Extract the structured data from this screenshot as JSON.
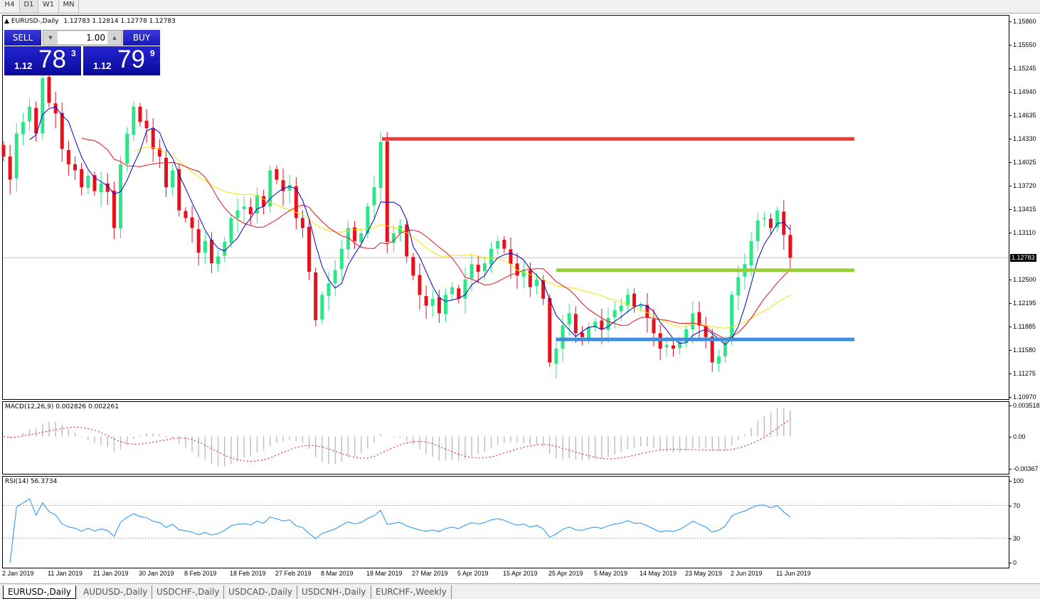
{
  "toolbar": {
    "timeframes": [
      "H4",
      "D1",
      "W1",
      "MN"
    ],
    "active": "D1"
  },
  "chart": {
    "title": "EURUSD-,Daily",
    "ohlc": "1.12783 1.12814 1.12778 1.12783",
    "current_price": "1.12783",
    "price_axis": [
      "1.15860",
      "1.15550",
      "1.15245",
      "1.14940",
      "1.14635",
      "1.14330",
      "1.14025",
      "1.13720",
      "1.13415",
      "1.13110",
      "1.12500",
      "1.12195",
      "1.11885",
      "1.11580",
      "1.11275",
      "1.10970"
    ],
    "date_axis": [
      "2 Jan 2019",
      "11 Jan 2019",
      "21 Jan 2019",
      "30 Jan 2019",
      "8 Feb 2019",
      "18 Feb 2019",
      "27 Feb 2019",
      "8 Mar 2019",
      "18 Mar 2019",
      "27 Mar 2019",
      "5 Apr 2019",
      "15 Apr 2019",
      "25 Apr 2019",
      "5 May 2019",
      "14 May 2019",
      "23 May 2019",
      "2 Jun 2019",
      "11 Jun 2019"
    ],
    "colors": {
      "bull": "#2ee68a",
      "bear": "#e8101a",
      "ma_fast": "#0000cc",
      "ma_mid": "#e8101a",
      "ma_slow": "#f5e600",
      "grid_line": "#c0c0c0"
    }
  },
  "trade_panel": {
    "sell_label": "SELL",
    "buy_label": "BUY",
    "lot": "1.00",
    "sell": {
      "prefix": "1.12",
      "big": "78",
      "sup": "3"
    },
    "buy": {
      "prefix": "1.12",
      "big": "79",
      "sup": "9"
    }
  },
  "macd": {
    "title": "MACD(12,26,9) 0.002826 0.002261",
    "axis": [
      "0.003518",
      "0.00",
      "-0.00367"
    ]
  },
  "rsi": {
    "title": "RSI(14) 56.3734",
    "axis": [
      "100",
      "70",
      "30",
      "0"
    ]
  },
  "tabs": [
    "EURUSD-,Daily",
    "AUDUSD-,Daily",
    "USDCHF-,Daily",
    "USDCAD-,Daily",
    "USDCNH-,Daily",
    "EURCHF-,Weekly"
  ],
  "chart_data": {
    "type": "candlestick",
    "ylim": [
      1.1097,
      1.1586
    ],
    "closes": [
      1.141,
      1.138,
      1.144,
      1.1455,
      1.1475,
      1.144,
      1.1512,
      1.148,
      1.1466,
      1.142,
      1.14,
      1.1392,
      1.137,
      1.1385,
      1.1365,
      1.1375,
      1.1364,
      1.1317,
      1.14,
      1.144,
      1.1475,
      1.1455,
      1.1447,
      1.142,
      1.141,
      1.137,
      1.1392,
      1.134,
      1.133,
      1.1317,
      1.1285,
      1.13,
      1.1271,
      1.128,
      1.1299,
      1.133,
      1.134,
      1.1345,
      1.1335,
      1.136,
      1.1345,
      1.1392,
      1.138,
      1.1365,
      1.1373,
      1.133,
      1.1317,
      1.126,
      1.1197,
      1.123,
      1.1245,
      1.1262,
      1.129,
      1.1317,
      1.13,
      1.131,
      1.1345,
      1.137,
      1.1429,
      1.1299,
      1.131,
      1.132,
      1.128,
      1.1255,
      1.123,
      1.1216,
      1.1225,
      1.1206,
      1.123,
      1.124,
      1.1225,
      1.125,
      1.127,
      1.126,
      1.1271,
      1.129,
      1.13,
      1.129,
      1.127,
      1.1255,
      1.1262,
      1.124,
      1.125,
      1.1225,
      1.1142,
      1.116,
      1.119,
      1.1206,
      1.118,
      1.1175,
      1.1188,
      1.1195,
      1.1185,
      1.12,
      1.121,
      1.1216,
      1.123,
      1.1215,
      1.1216,
      1.12,
      1.118,
      1.116,
      1.1165,
      1.116,
      1.1169,
      1.1185,
      1.1206,
      1.119,
      1.1175,
      1.1142,
      1.115,
      1.1169,
      1.123,
      1.1253,
      1.127,
      1.13,
      1.1327,
      1.133,
      1.1317,
      1.134,
      1.1308,
      1.12783
    ],
    "levels": [
      {
        "price": 1.1433,
        "color": "#f03a3a"
      },
      {
        "price": 1.1262,
        "color": "#9acd32"
      },
      {
        "price": 1.1172,
        "color": "#3c8ee0"
      }
    ],
    "macd_ylim": [
      -0.00367,
      0.003518
    ],
    "rsi_levels": [
      70,
      30
    ]
  }
}
